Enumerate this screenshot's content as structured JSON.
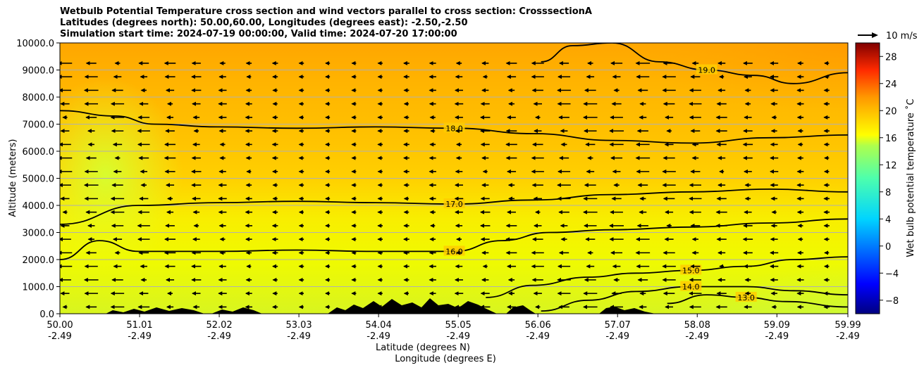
{
  "chart_data": {
    "type": "heatmap",
    "title_lines": [
      "Wetbulb Potential Temperature cross section and wind vectors parallel to cross section: CrosssectionA",
      "Latitudes (degrees north): 50.00,60.00, Longitudes (degrees east): -2.50,-2.50",
      "Simulation start time: 2024-07-19 00:00:00, Valid time: 2024-07-20 17:00:00"
    ],
    "xlabel": "Latitude (degrees N)",
    "xlabel2": "Longitude (degrees E)",
    "ylabel": "Altitude (meters)",
    "xlim": [
      50.0,
      59.99
    ],
    "ylim": [
      0,
      10000
    ],
    "x_ticks": [
      {
        "lat": 50.0,
        "lat_label": "50.00",
        "lon_label": "-2.49"
      },
      {
        "lat": 51.01,
        "lat_label": "51.01",
        "lon_label": "-2.49"
      },
      {
        "lat": 52.02,
        "lat_label": "52.02",
        "lon_label": "-2.49"
      },
      {
        "lat": 53.03,
        "lat_label": "53.03",
        "lon_label": "-2.49"
      },
      {
        "lat": 54.04,
        "lat_label": "54.04",
        "lon_label": "-2.49"
      },
      {
        "lat": 55.05,
        "lat_label": "55.05",
        "lon_label": "-2.49"
      },
      {
        "lat": 56.06,
        "lat_label": "56.06",
        "lon_label": "-2.49"
      },
      {
        "lat": 57.07,
        "lat_label": "57.07",
        "lon_label": "-2.49"
      },
      {
        "lat": 58.08,
        "lat_label": "58.08",
        "lon_label": "-2.49"
      },
      {
        "lat": 59.09,
        "lat_label": "59.09",
        "lon_label": "-2.49"
      },
      {
        "lat": 59.99,
        "lat_label": "59.99",
        "lon_label": "-2.49"
      }
    ],
    "y_ticks": [
      {
        "value": 0,
        "label": "0.0"
      },
      {
        "value": 1000,
        "label": "1000.0"
      },
      {
        "value": 2000,
        "label": "2000.0"
      },
      {
        "value": 3000,
        "label": "3000.0"
      },
      {
        "value": 4000,
        "label": "4000.0"
      },
      {
        "value": 5000,
        "label": "5000.0"
      },
      {
        "value": 6000,
        "label": "6000.0"
      },
      {
        "value": 7000,
        "label": "7000.0"
      },
      {
        "value": 8000,
        "label": "8000.0"
      },
      {
        "value": 9000,
        "label": "9000.0"
      },
      {
        "value": 10000,
        "label": "10000.0"
      }
    ],
    "grid": "horizontal",
    "colorbar": {
      "label": "Wet bulb potential temperature ˚C",
      "range": [
        -10,
        30
      ],
      "ticks": [
        {
          "value": -8,
          "label": "−8"
        },
        {
          "value": -4,
          "label": "−4"
        },
        {
          "value": 0,
          "label": "0"
        },
        {
          "value": 4,
          "label": "4"
        },
        {
          "value": 8,
          "label": "8"
        },
        {
          "value": 12,
          "label": "12"
        },
        {
          "value": 16,
          "label": "16"
        },
        {
          "value": 20,
          "label": "20"
        },
        {
          "value": 24,
          "label": "24"
        },
        {
          "value": 28,
          "label": "28"
        }
      ]
    },
    "wind_key": {
      "label": "10 m/s",
      "speed_ms": 10
    },
    "contour_levels": [
      {
        "value": 13.0,
        "label": "13.0",
        "lat": [
          57.7,
          58.2,
          58.7,
          59.2,
          59.99
        ],
        "alt": [
          380,
          700,
          600,
          450,
          250
        ]
      },
      {
        "value": 14.0,
        "label": "14.0",
        "lat": [
          56.1,
          56.7,
          57.3,
          58.0,
          58.7,
          59.3,
          59.99
        ],
        "alt": [
          100,
          500,
          820,
          1000,
          1000,
          850,
          700
        ]
      },
      {
        "value": 15.0,
        "label": "15.0",
        "lat": [
          55.4,
          56.0,
          56.7,
          57.3,
          58.0,
          58.7,
          59.3,
          59.99
        ],
        "alt": [
          600,
          1050,
          1350,
          1500,
          1600,
          1750,
          2000,
          2100
        ]
      },
      {
        "value": 16.0,
        "label": "16.0",
        "lat": [
          50.0,
          50.5,
          51.0,
          52.0,
          53.0,
          54.0,
          55.0,
          55.6,
          56.2,
          57.0,
          58.0,
          59.0,
          59.99
        ],
        "alt": [
          2000,
          2700,
          2300,
          2300,
          2350,
          2300,
          2300,
          2700,
          3000,
          3100,
          3200,
          3350,
          3500
        ]
      },
      {
        "value": 17.0,
        "label": "17.0",
        "lat": [
          50.0,
          51.0,
          52.0,
          53.0,
          54.0,
          55.0,
          56.0,
          57.0,
          58.0,
          59.0,
          59.99
        ],
        "alt": [
          3300,
          4000,
          4100,
          4150,
          4100,
          4050,
          4200,
          4400,
          4500,
          4600,
          4500
        ]
      },
      {
        "value": 18.0,
        "label": "18.0",
        "lat": [
          50.0,
          50.7,
          51.2,
          52.0,
          53.0,
          54.0,
          55.0,
          56.0,
          57.0,
          58.0,
          59.0,
          59.99
        ],
        "alt": [
          7500,
          7300,
          7000,
          6900,
          6850,
          6900,
          6850,
          6650,
          6400,
          6300,
          6500,
          6600
        ]
      },
      {
        "value": 19.0,
        "label": "19.0",
        "lat": [
          56.1,
          56.5,
          57.0,
          57.6,
          58.2,
          58.8,
          59.3,
          59.99
        ],
        "alt": [
          9300,
          9900,
          10000,
          9300,
          9000,
          8800,
          8500,
          8900
        ]
      }
    ],
    "background_field": {
      "low_level_west": 15.5,
      "low_level_east": 13.0,
      "mid_level": 17.0,
      "upper_level": 18.5,
      "top_east": 19.5
    },
    "colors": {
      "contour": "#000000",
      "terrain": "#000000",
      "gridline": "#b0b0b0"
    }
  }
}
